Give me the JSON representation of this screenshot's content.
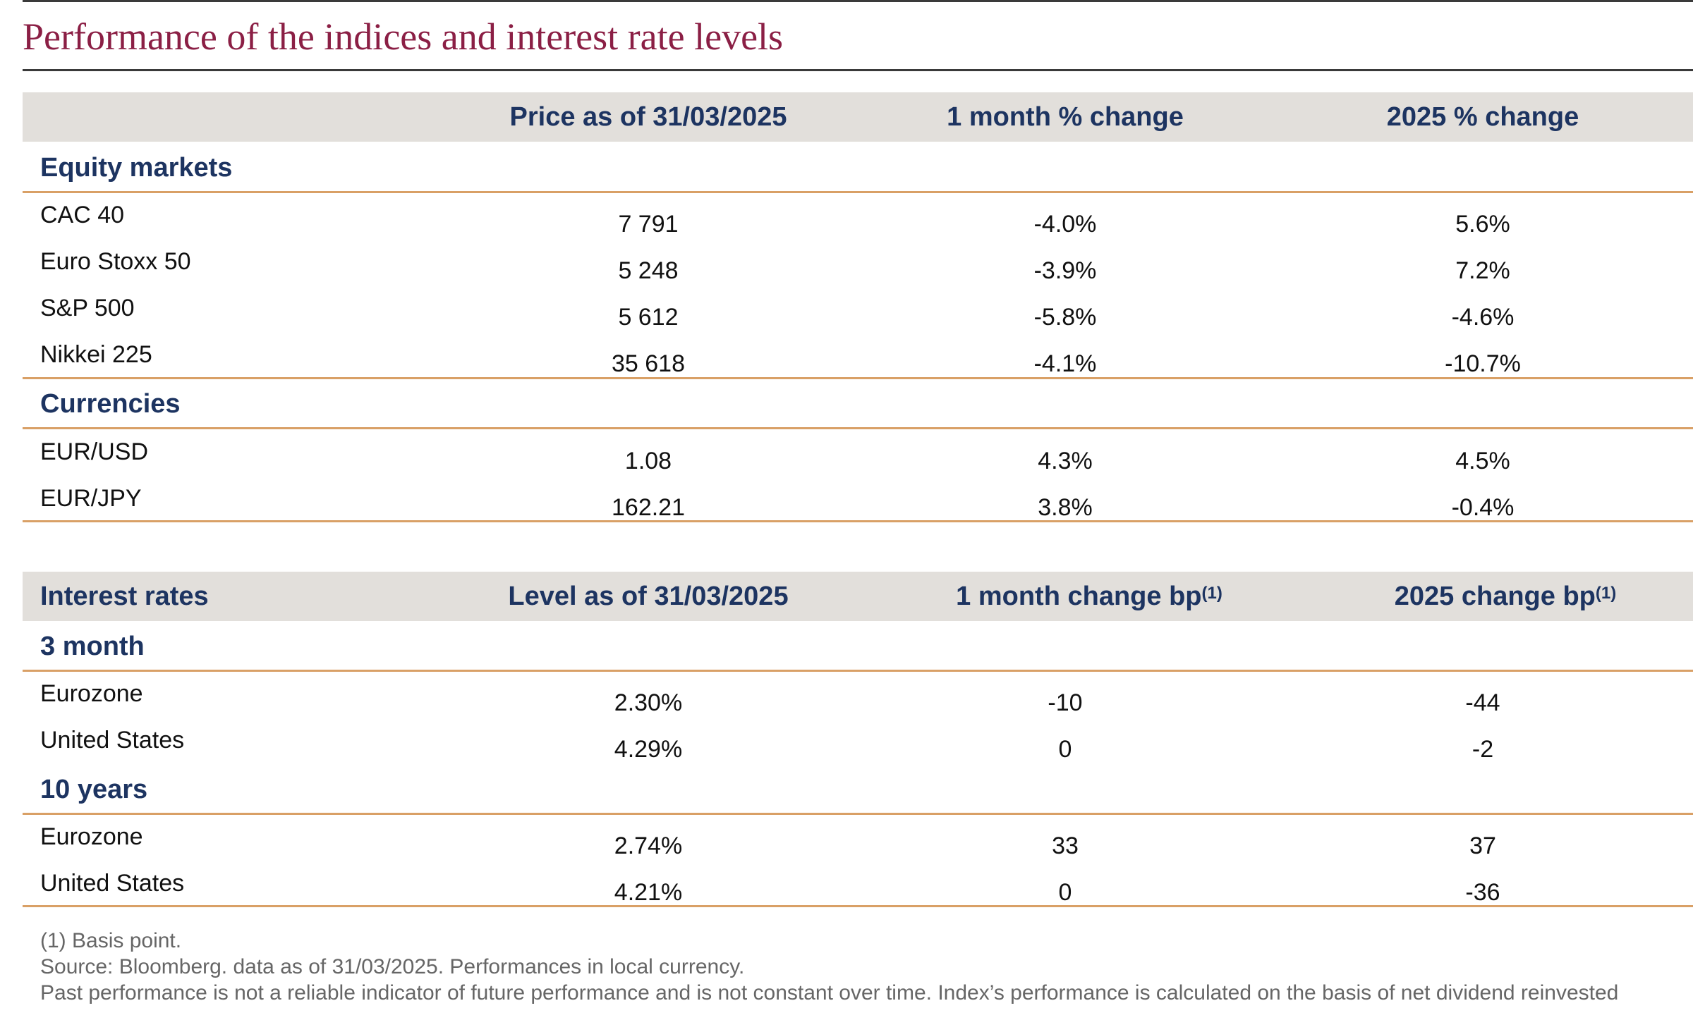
{
  "title": "Performance of the indices and interest rate levels",
  "markets_table": {
    "headers": [
      "",
      "Price as of 31/03/2025",
      "1 month % change",
      "2025 % change"
    ],
    "sections": [
      {
        "label": "Equity markets",
        "rows": [
          {
            "name": "CAC 40",
            "price": "7 791",
            "m1": "-4.0%",
            "ytd": "5.6%"
          },
          {
            "name": "Euro Stoxx 50",
            "price": "5 248",
            "m1": "-3.9%",
            "ytd": "7.2%"
          },
          {
            "name": "S&P 500",
            "price": "5 612",
            "m1": "-5.8%",
            "ytd": "-4.6%"
          },
          {
            "name": "Nikkei 225",
            "price": "35 618",
            "m1": "-4.1%",
            "ytd": "-10.7%"
          }
        ]
      },
      {
        "label": "Currencies",
        "rows": [
          {
            "name": "EUR/USD",
            "price": "1.08",
            "m1": "4.3%",
            "ytd": "4.5%"
          },
          {
            "name": "EUR/JPY",
            "price": "162.21",
            "m1": "3.8%",
            "ytd": "-0.4%"
          }
        ]
      }
    ]
  },
  "rates_table": {
    "headers": [
      "Interest rates",
      "Level as of 31/03/2025",
      "1 month change bp",
      "2025 change bp"
    ],
    "header_sup": "(1)",
    "sections": [
      {
        "label": "3 month",
        "rows": [
          {
            "name": "Eurozone",
            "level": "2.30%",
            "m1": "-10",
            "ytd": "-44"
          },
          {
            "name": "United States",
            "level": "4.29%",
            "m1": "0",
            "ytd": "-2"
          }
        ]
      },
      {
        "label": "10 years",
        "rows": [
          {
            "name": "Eurozone",
            "level": "2.74%",
            "m1": "33",
            "ytd": "37"
          },
          {
            "name": "United States",
            "level": "4.21%",
            "m1": "0",
            "ytd": "-36"
          }
        ]
      }
    ]
  },
  "notes": [
    "(1) Basis point.",
    "Source: Bloomberg. data as of 31/03/2025. Performances in local currency.",
    "Past performance is not a reliable indicator of future performance and is not constant over time. Index’s performance is calculated on the basis of net dividend reinvested"
  ]
}
